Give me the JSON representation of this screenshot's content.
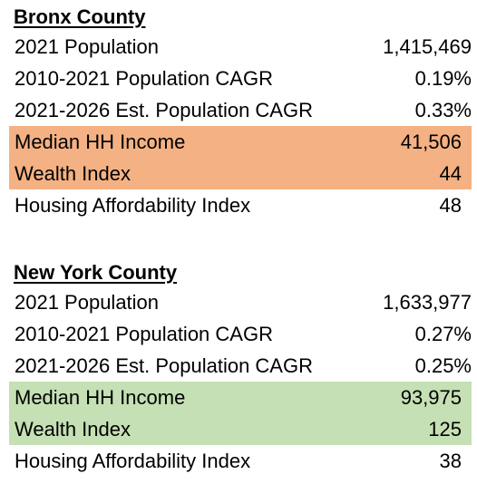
{
  "colors": {
    "highlight_orange": "#F4B183",
    "highlight_green": "#C5E0B4"
  },
  "bronx": {
    "title": "Bronx County",
    "rows": [
      {
        "label": "2021 Population",
        "value": "1,415,469"
      },
      {
        "label": "2010-2021 Population CAGR",
        "value": "0.19%"
      },
      {
        "label": "2021-2026 Est. Population CAGR",
        "value": "0.33%"
      },
      {
        "label": "Median HH Income",
        "value": "41,506"
      },
      {
        "label": "Wealth Index",
        "value": "44"
      },
      {
        "label": "Housing Affordability Index",
        "value": "48"
      }
    ]
  },
  "new_york": {
    "title": "New York County",
    "rows": [
      {
        "label": "2021 Population",
        "value": "1,633,977"
      },
      {
        "label": "2010-2021 Population CAGR",
        "value": "0.27%"
      },
      {
        "label": "2021-2026 Est. Population CAGR",
        "value": "0.25%"
      },
      {
        "label": "Median HH Income",
        "value": "93,975"
      },
      {
        "label": "Wealth Index",
        "value": "125"
      },
      {
        "label": "Housing Affordability Index",
        "value": "38"
      }
    ]
  }
}
